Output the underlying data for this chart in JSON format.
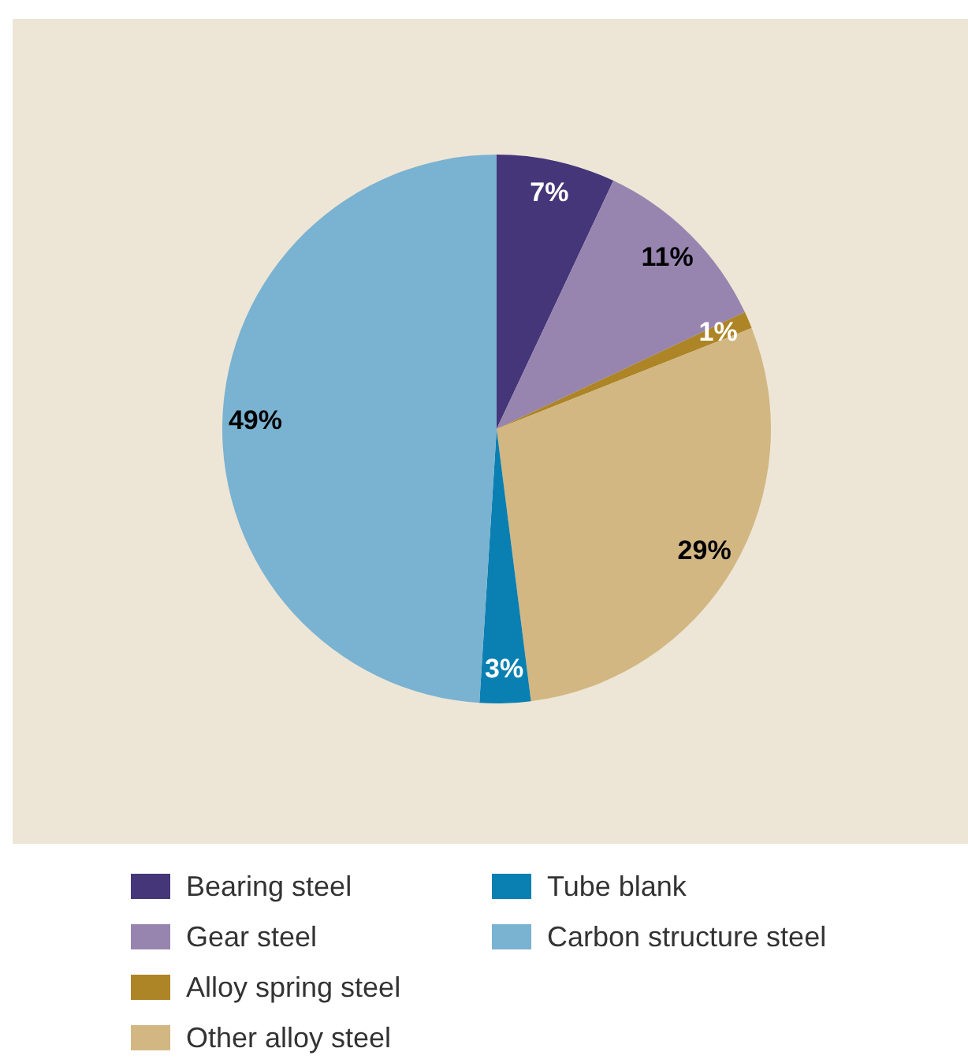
{
  "chart_data": {
    "type": "pie",
    "categories": [
      "Bearing steel",
      "Gear steel",
      "Alloy spring steel",
      "Other alloy steel",
      "Tube blank",
      "Carbon structure steel"
    ],
    "values": [
      7,
      11,
      1,
      29,
      3,
      49
    ],
    "colors": [
      "#45367a",
      "#9785b0",
      "#ad8526",
      "#d2b783",
      "#0a7fb2",
      "#7ab2d1"
    ],
    "value_labels": [
      "7%",
      "11%",
      "1%",
      "29%",
      "3%",
      "49%"
    ],
    "legend": "bottom"
  }
}
